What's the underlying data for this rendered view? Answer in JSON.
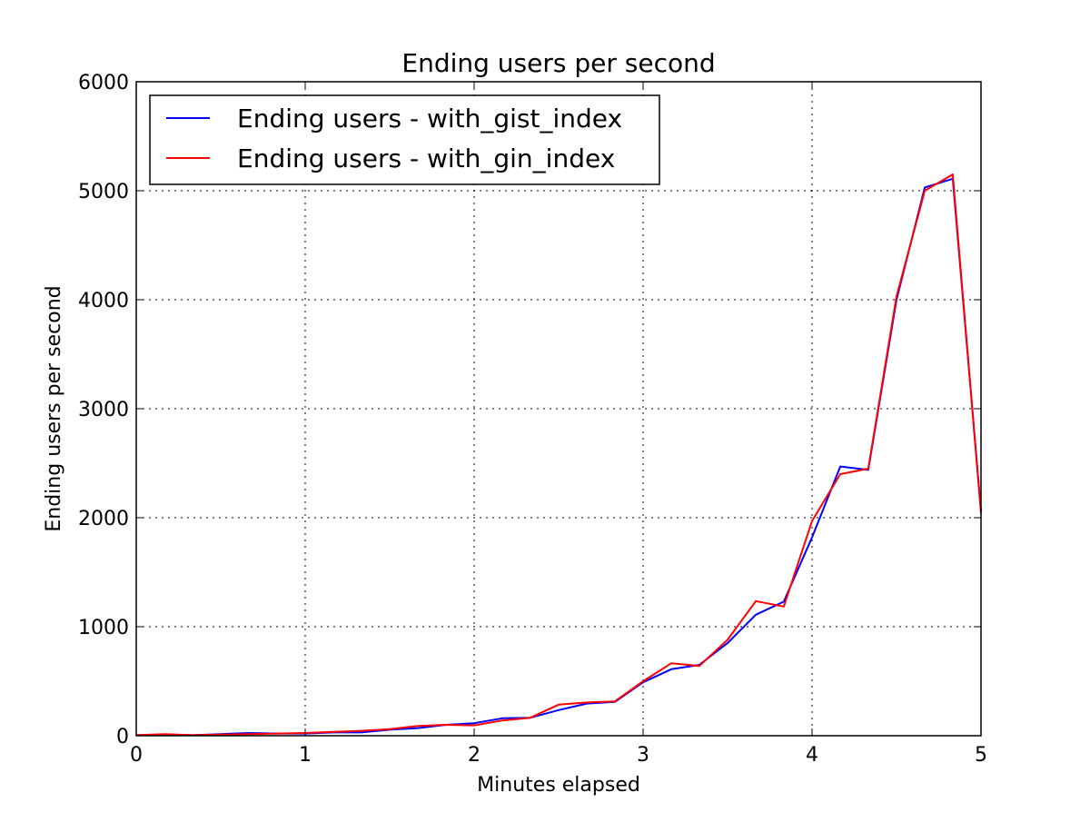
{
  "chart_data": {
    "type": "line",
    "title": "Ending users per second",
    "xlabel": "Minutes elapsed",
    "ylabel": "Ending users per second",
    "xlim": [
      0,
      5
    ],
    "ylim": [
      0,
      6000
    ],
    "xticks": [
      0,
      1,
      2,
      3,
      4,
      5
    ],
    "yticks": [
      0,
      1000,
      2000,
      3000,
      4000,
      5000,
      6000
    ],
    "grid": true,
    "legend_position": "top-left",
    "x": [
      0,
      0.167,
      0.333,
      0.5,
      0.667,
      0.833,
      1,
      1.167,
      1.333,
      1.5,
      1.667,
      1.833,
      2,
      2.167,
      2.333,
      2.5,
      2.667,
      2.833,
      3,
      3.167,
      3.333,
      3.5,
      3.667,
      3.833,
      4,
      4.167,
      4.333,
      4.5,
      4.667,
      4.833,
      5
    ],
    "series": [
      {
        "name": "Ending users - with_gist_index",
        "color": "#0000ff",
        "values": [
          5,
          10,
          5,
          15,
          25,
          20,
          20,
          30,
          30,
          55,
          70,
          100,
          115,
          160,
          165,
          235,
          295,
          310,
          490,
          610,
          650,
          850,
          1110,
          1230,
          1820,
          2470,
          2440,
          4000,
          5030,
          5110,
          2060
        ]
      },
      {
        "name": "Ending users - with_gin_index",
        "color": "#ff0000",
        "values": [
          5,
          15,
          5,
          10,
          15,
          20,
          25,
          35,
          45,
          60,
          90,
          100,
          95,
          140,
          165,
          285,
          305,
          315,
          500,
          665,
          640,
          880,
          1235,
          1185,
          1970,
          2400,
          2450,
          4030,
          5000,
          5150,
          2040
        ]
      }
    ]
  }
}
